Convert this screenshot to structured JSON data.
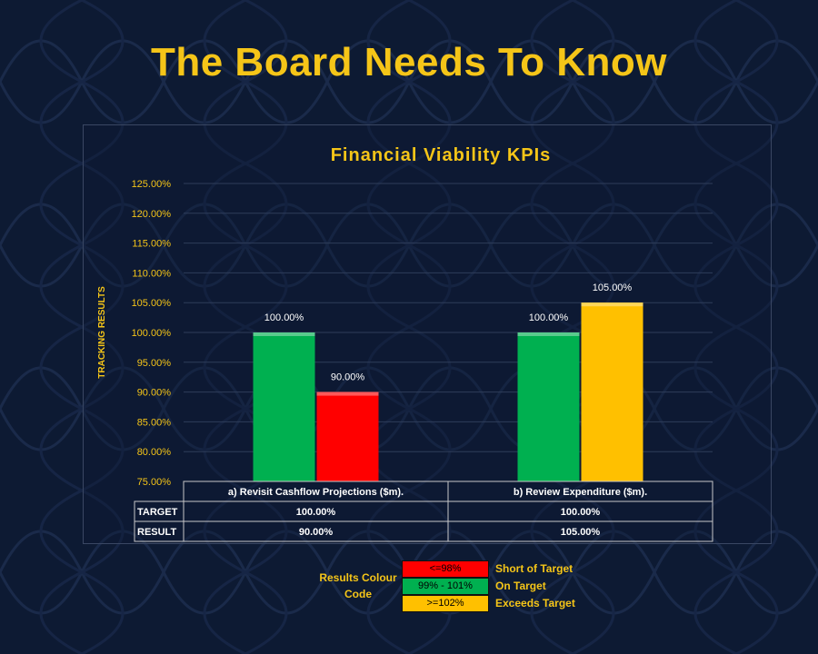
{
  "page": {
    "title": "The Board Needs To Know"
  },
  "colors": {
    "accent_yellow": "#f5c518",
    "on_target_green": "#00b050",
    "short_red": "#ff0000",
    "exceeds_yellow": "#ffc000",
    "background": "#0d1a33"
  },
  "chart_data": {
    "type": "bar",
    "title": "Financial Viability KPIs",
    "ylabel": "TRACKING RESULTS",
    "xlabel": "",
    "ylim": [
      75,
      125
    ],
    "yticks": [
      "75.00%",
      "80.00%",
      "85.00%",
      "90.00%",
      "95.00%",
      "100.00%",
      "105.00%",
      "110.00%",
      "115.00%",
      "120.00%",
      "125.00%"
    ],
    "categories": [
      "a) Revisit Cashflow Projections ($m).",
      "b) Review Expenditure ($m)."
    ],
    "series": [
      {
        "name": "TARGET",
        "values": [
          100.0,
          100.0
        ],
        "labels": [
          "100.00%",
          "100.00%"
        ],
        "colors": [
          "#00b050",
          "#00b050"
        ]
      },
      {
        "name": "RESULT",
        "values": [
          90.0,
          105.0
        ],
        "labels": [
          "90.00%",
          "105.00%"
        ],
        "colors": [
          "#ff0000",
          "#ffc000"
        ]
      }
    ],
    "grid": true,
    "legend": "data table below chart"
  },
  "legend": {
    "caption_line1": "Results Colour",
    "caption_line2": "Code",
    "items": [
      {
        "range": "<=98%",
        "meaning": "Short of Target",
        "color": "#ff0000"
      },
      {
        "range": "99% - 101%",
        "meaning": "On Target",
        "color": "#00b050"
      },
      {
        "range": ">=102%",
        "meaning": "Exceeds Target",
        "color": "#ffc000"
      }
    ]
  }
}
